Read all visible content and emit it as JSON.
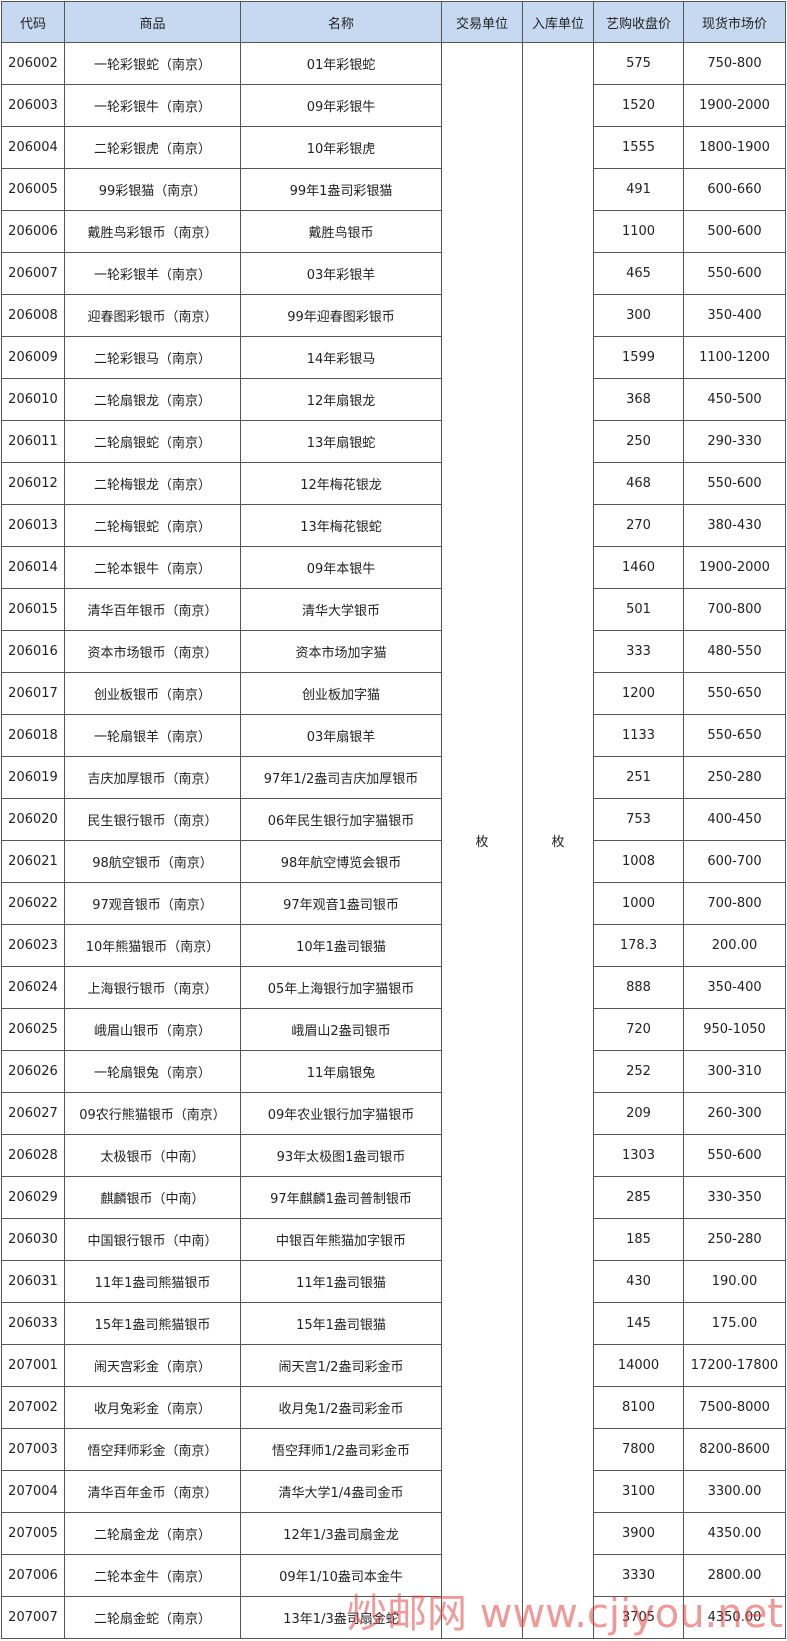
{
  "table": {
    "header": [
      "代码",
      "商品",
      "名称",
      "交易单位",
      "入库单位",
      "艺购收盘价",
      "现货市场价"
    ],
    "trade_unit": "枚",
    "storage_unit": "枚",
    "rows": [
      [
        "206002",
        "一轮彩银蛇（南京）",
        "01年彩银蛇",
        "575",
        "750-800"
      ],
      [
        "206003",
        "一轮彩银牛（南京）",
        "09年彩银牛",
        "1520",
        "1900-2000"
      ],
      [
        "206004",
        "二轮彩银虎（南京）",
        "10年彩银虎",
        "1555",
        "1800-1900"
      ],
      [
        "206005",
        "99彩银猫（南京）",
        "99年1盎司彩银猫",
        "491",
        "600-660"
      ],
      [
        "206006",
        "戴胜鸟彩银币（南京）",
        "戴胜鸟银币",
        "1100",
        "500-600"
      ],
      [
        "206007",
        "一轮彩银羊（南京）",
        "03年彩银羊",
        "465",
        "550-600"
      ],
      [
        "206008",
        "迎春图彩银币（南京）",
        "99年迎春图彩银币",
        "300",
        "350-400"
      ],
      [
        "206009",
        "二轮彩银马（南京）",
        "14年彩银马",
        "1599",
        "1100-1200"
      ],
      [
        "206010",
        "二轮扇银龙（南京）",
        "12年扇银龙",
        "368",
        "450-500"
      ],
      [
        "206011",
        "二轮扇银蛇（南京）",
        "13年扇银蛇",
        "250",
        "290-330"
      ],
      [
        "206012",
        "二轮梅银龙（南京）",
        "12年梅花银龙",
        "468",
        "550-600"
      ],
      [
        "206013",
        "二轮梅银蛇（南京）",
        "13年梅花银蛇",
        "270",
        "380-430"
      ],
      [
        "206014",
        "二轮本银牛（南京）",
        "09年本银牛",
        "1460",
        "1900-2000"
      ],
      [
        "206015",
        "清华百年银币（南京）",
        "清华大学银币",
        "501",
        "700-800"
      ],
      [
        "206016",
        "资本市场银币（南京）",
        "资本市场加字猫",
        "333",
        "480-550"
      ],
      [
        "206017",
        "创业板银币（南京）",
        "创业板加字猫",
        "1200",
        "550-650"
      ],
      [
        "206018",
        "一轮扇银羊（南京）",
        "03年扇银羊",
        "1133",
        "550-650"
      ],
      [
        "206019",
        "吉庆加厚银币（南京）",
        "97年1/2盎司吉庆加厚银币",
        "251",
        "250-280"
      ],
      [
        "206020",
        "民生银行银币（南京）",
        "06年民生银行加字猫银币",
        "753",
        "400-450"
      ],
      [
        "206021",
        "98航空银币（南京）",
        "98年航空博览会银币",
        "1008",
        "600-700"
      ],
      [
        "206022",
        "97观音银币（南京）",
        "97年观音1盎司银币",
        "1000",
        "700-800"
      ],
      [
        "206023",
        "10年熊猫银币（南京）",
        "10年1盎司银猫",
        "178.3",
        "200.00"
      ],
      [
        "206024",
        "上海银行银币（南京）",
        "05年上海银行加字猫银币",
        "888",
        "350-400"
      ],
      [
        "206025",
        "峨眉山银币（南京）",
        "峨眉山2盎司银币",
        "720",
        "950-1050"
      ],
      [
        "206026",
        "一轮扇银兔（南京）",
        "11年扇银兔",
        "252",
        "300-310"
      ],
      [
        "206027",
        "09农行熊猫银币（南京）",
        "09年农业银行加字猫银币",
        "209",
        "260-300"
      ],
      [
        "206028",
        "太极银币（中南）",
        "93年太极图1盎司银币",
        "1303",
        "550-600"
      ],
      [
        "206029",
        "麒麟银币（中南）",
        "97年麒麟1盎司普制银币",
        "285",
        "330-350"
      ],
      [
        "206030",
        "中国银行银币（中南）",
        "中银百年熊猫加字银币",
        "185",
        "250-280"
      ],
      [
        "206031",
        "11年1盎司熊猫银币",
        "11年1盎司银猫",
        "430",
        "190.00"
      ],
      [
        "206033",
        "15年1盎司熊猫银币",
        "15年1盎司银猫",
        "145",
        "175.00"
      ],
      [
        "207001",
        "闹天宫彩金（南京）",
        "闹天宫1/2盎司彩金币",
        "14000",
        "17200-17800"
      ],
      [
        "207002",
        "收月兔彩金（南京）",
        "收月兔1/2盎司彩金币",
        "8100",
        "7500-8000"
      ],
      [
        "207003",
        "悟空拜师彩金（南京）",
        "悟空拜师1/2盎司彩金币",
        "7800",
        "8200-8600"
      ],
      [
        "207004",
        "清华百年金币（南京）",
        "清华大学1/4盎司金币",
        "3100",
        "3300.00"
      ],
      [
        "207005",
        "二轮扇金龙（南京）",
        "12年1/3盎司扇金龙",
        "3900",
        "4350.00"
      ],
      [
        "207006",
        "二轮本金牛（南京）",
        "09年1/10盎司本金牛",
        "3330",
        "2800.00"
      ],
      [
        "207007",
        "二轮扇金蛇（南京）",
        "13年1/3盎司扇金蛇",
        "3705",
        "4350.00"
      ]
    ]
  },
  "watermark": "炒邮网 www.cjiyou.net"
}
